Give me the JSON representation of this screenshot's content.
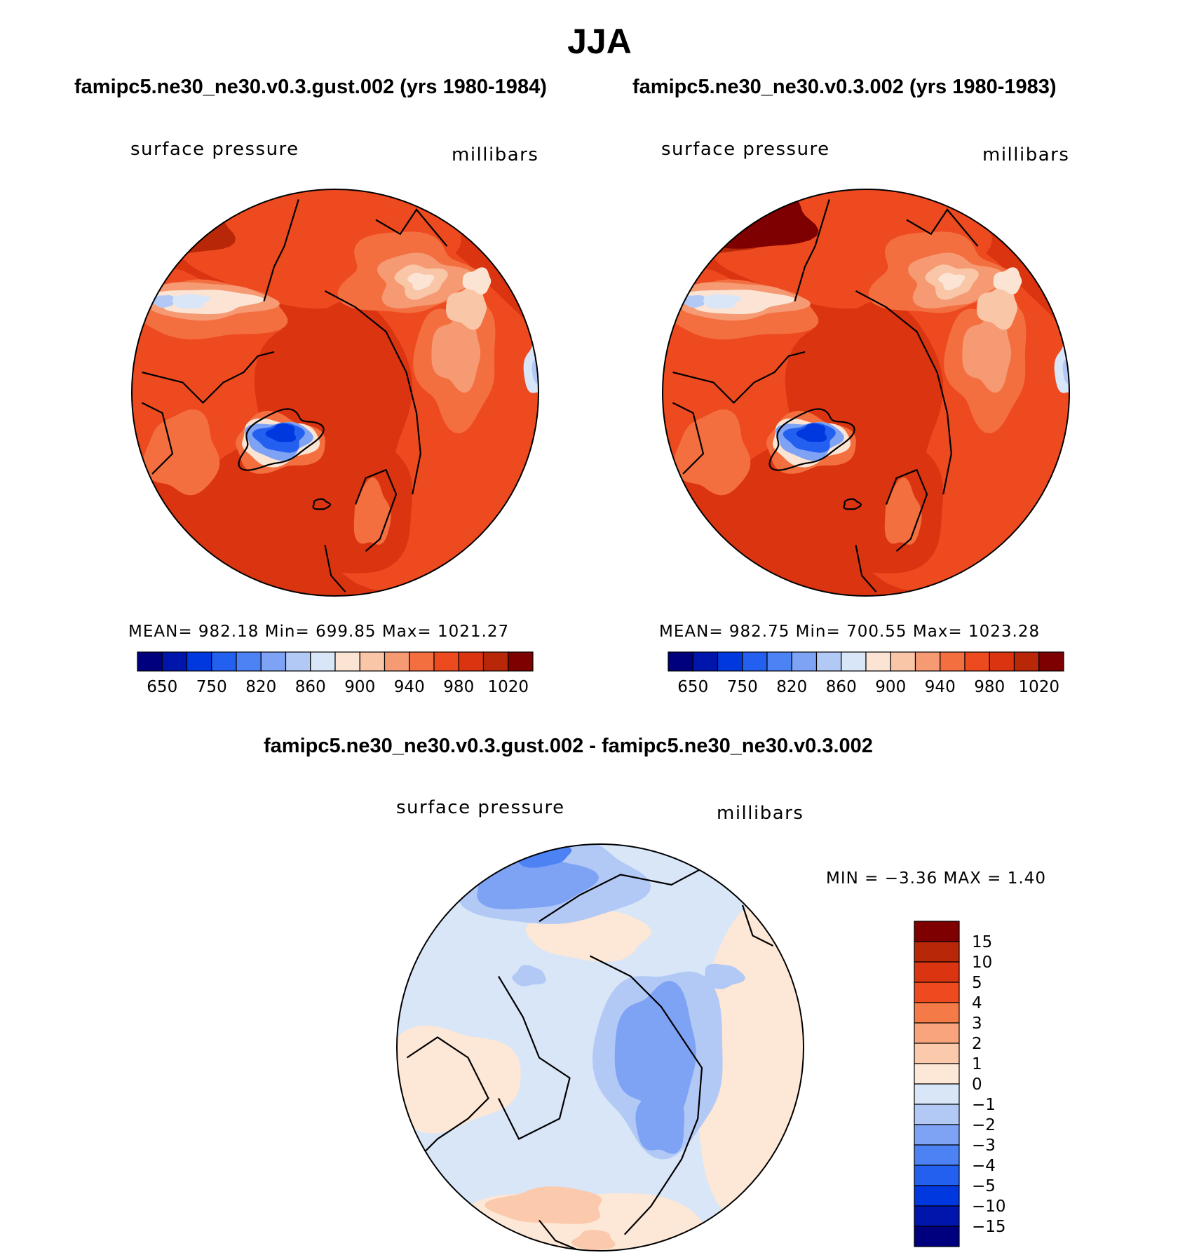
{
  "page": {
    "title": "JJA"
  },
  "panels": [
    {
      "title": "famipc5.ne30_ne30.v0.3.gust.002 (yrs 1980-1984)",
      "variable": "surface pressure",
      "units": "millibars",
      "stats_text": "MEAN=  982.18    Min=  699.85    Max=  1021.27"
    },
    {
      "title": "famipc5.ne30_ne30.v0.3.002 (yrs 1980-1983)",
      "variable": "surface pressure",
      "units": "millibars",
      "stats_text": "MEAN=  982.75    Min=  700.55    Max=  1023.28"
    },
    {
      "title": "famipc5.ne30_ne30.v0.3.gust.002 - famipc5.ne30_ne30.v0.3.002",
      "variable": "surface pressure",
      "units": "millibars",
      "stats_text": "MIN =    −3.36  MAX =      1.40"
    }
  ],
  "chart_data": [
    {
      "type": "heatmap",
      "projection": "polar-stereographic",
      "title": "famipc5.ne30_ne30.v0.3.gust.002 (yrs 1980-1984)",
      "variable": "surface pressure",
      "units": "millibars",
      "mean": 982.18,
      "min": 699.85,
      "max": 1021.27,
      "colorbar": {
        "orientation": "horizontal",
        "tick_labels": [
          "650",
          "750",
          "820",
          "860",
          "900",
          "940",
          "980",
          "1020"
        ],
        "colors": [
          "#00007f",
          "#0015ac",
          "#0038df",
          "#2460f0",
          "#4d82f5",
          "#7ea3f5",
          "#b3c9f5",
          "#d8e6f8",
          "#fbe4d4",
          "#f9c6a8",
          "#f59a73",
          "#f46f40",
          "#ee4a20",
          "#db3411",
          "#b82808",
          "#7f0000"
        ]
      }
    },
    {
      "type": "heatmap",
      "projection": "polar-stereographic",
      "title": "famipc5.ne30_ne30.v0.3.002 (yrs 1980-1983)",
      "variable": "surface pressure",
      "units": "millibars",
      "mean": 982.75,
      "min": 700.55,
      "max": 1023.28,
      "colorbar": {
        "orientation": "horizontal",
        "tick_labels": [
          "650",
          "750",
          "820",
          "860",
          "900",
          "940",
          "980",
          "1020"
        ],
        "colors": [
          "#00007f",
          "#0015ac",
          "#0038df",
          "#2460f0",
          "#4d82f5",
          "#7ea3f5",
          "#b3c9f5",
          "#d8e6f8",
          "#fbe4d4",
          "#f9c6a8",
          "#f59a73",
          "#f46f40",
          "#ee4a20",
          "#db3411",
          "#b82808",
          "#7f0000"
        ]
      }
    },
    {
      "type": "heatmap",
      "projection": "polar-stereographic",
      "title": "famipc5.ne30_ne30.v0.3.gust.002 - famipc5.ne30_ne30.v0.3.002",
      "variable": "surface pressure",
      "units": "millibars",
      "min": -3.36,
      "max": 1.4,
      "colorbar": {
        "orientation": "vertical",
        "tick_labels": [
          "15",
          "10",
          "5",
          "4",
          "3",
          "2",
          "1",
          "0",
          "−1",
          "−2",
          "−3",
          "−4",
          "−5",
          "−10",
          "−15"
        ],
        "colors": [
          "#7f0000",
          "#b82808",
          "#db3411",
          "#ee4a20",
          "#f47a48",
          "#f9a47c",
          "#fbc9ac",
          "#fde7d6",
          "#d8e6f8",
          "#b3c9f5",
          "#7ea3f5",
          "#4d82f5",
          "#2460f0",
          "#0038df",
          "#0015ac",
          "#00007f"
        ]
      }
    }
  ]
}
